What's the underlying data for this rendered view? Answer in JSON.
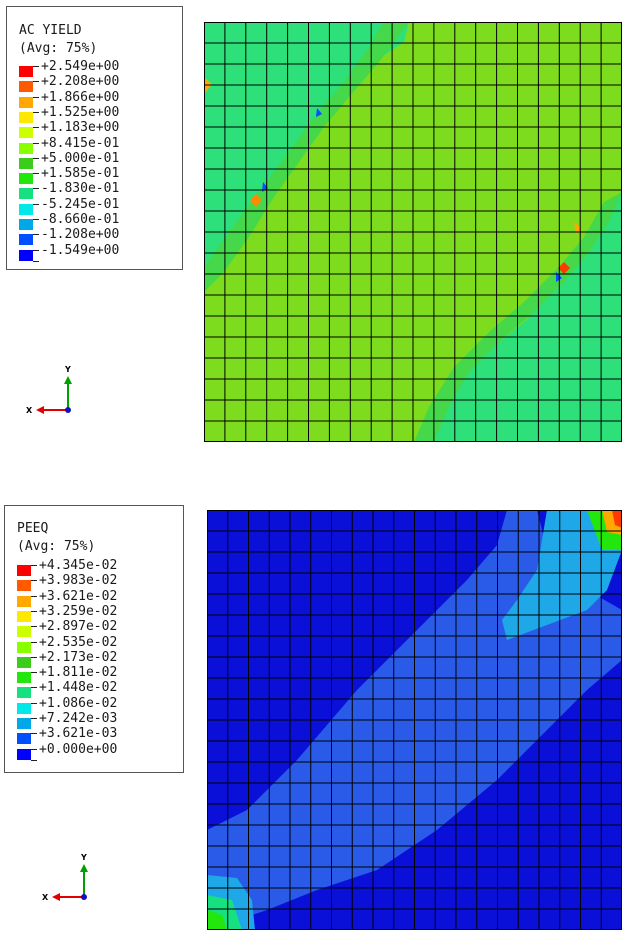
{
  "panels": [
    {
      "id": "ac-yield",
      "legend": {
        "title": "AC YIELD",
        "subtitle": "(Avg: 75%)",
        "labels": [
          "+2.549e+00",
          "+2.208e+00",
          "+1.866e+00",
          "+1.525e+00",
          "+1.183e+00",
          "+8.415e-01",
          "+5.000e-01",
          "+1.585e-01",
          "-1.830e-01",
          "-5.245e-01",
          "-8.660e-01",
          "-1.208e+00",
          "-1.549e+00"
        ],
        "colors": [
          "#ff0000",
          "#ff5a00",
          "#ffa800",
          "#ffe800",
          "#ccff00",
          "#8aff00",
          "#3ccc1c",
          "#22e60c",
          "#16e080",
          "#00e8e8",
          "#00a8e8",
          "#0050ff",
          "#0000ff"
        ]
      },
      "mesh": {
        "cols": 20,
        "rows": 20
      },
      "triad": {
        "x_label": "X",
        "y_label": "Y"
      }
    },
    {
      "id": "peeq",
      "legend": {
        "title": "PEEQ",
        "subtitle": "(Avg: 75%)",
        "labels": [
          "+4.345e-02",
          "+3.983e-02",
          "+3.621e-02",
          "+3.259e-02",
          "+2.897e-02",
          "+2.535e-02",
          "+2.173e-02",
          "+1.811e-02",
          "+1.448e-02",
          "+1.086e-02",
          "+7.242e-03",
          "+3.621e-03",
          "+0.000e+00"
        ],
        "colors": [
          "#ff0000",
          "#ff5a00",
          "#ffa800",
          "#ffe800",
          "#ccff00",
          "#8aff00",
          "#3ccc1c",
          "#22e60c",
          "#16e080",
          "#00e8e8",
          "#00a8e8",
          "#0050ff",
          "#0000ff"
        ]
      },
      "mesh": {
        "cols": 20,
        "rows": 20
      },
      "triad": {
        "x_label": "X",
        "y_label": "Y"
      }
    }
  ],
  "colors": {
    "mesh_line": "#000000",
    "ac_yield_base": "#7edc1e",
    "ac_yield_band": "#2ee07a",
    "peeq_base": "#0a10d8",
    "peeq_mid": "#2a5ae8",
    "peeq_light": "#1ea8e8"
  }
}
